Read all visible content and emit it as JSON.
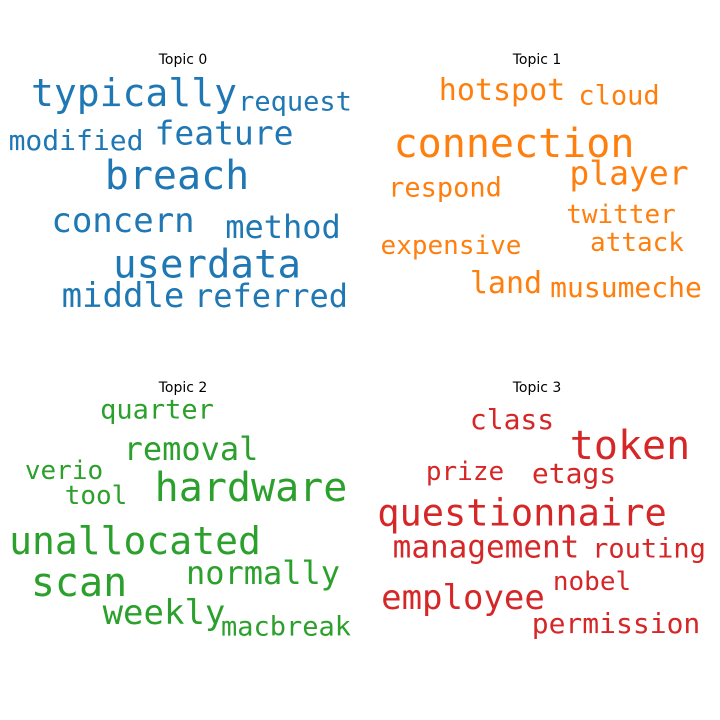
{
  "chart_data": [
    {
      "type": "wordcloud",
      "title": "Topic 0",
      "color": "#1f77b4",
      "words": [
        {
          "text": "breach",
          "weight": 1.0
        },
        {
          "text": "userdata",
          "weight": 0.98
        },
        {
          "text": "typically",
          "weight": 0.96
        },
        {
          "text": "middle",
          "weight": 0.86
        },
        {
          "text": "concern",
          "weight": 0.84
        },
        {
          "text": "feature",
          "weight": 0.82
        },
        {
          "text": "referred",
          "weight": 0.8
        },
        {
          "text": "method",
          "weight": 0.8
        },
        {
          "text": "modified",
          "weight": 0.7
        },
        {
          "text": "request",
          "weight": 0.68
        }
      ]
    },
    {
      "type": "wordcloud",
      "title": "Topic 1",
      "color": "#ff7f0e",
      "words": [
        {
          "text": "connection",
          "weight": 1.0
        },
        {
          "text": "player",
          "weight": 0.82
        },
        {
          "text": "hotspot",
          "weight": 0.76
        },
        {
          "text": "land",
          "weight": 0.76
        },
        {
          "text": "musumeche",
          "weight": 0.7
        },
        {
          "text": "respond",
          "weight": 0.68
        },
        {
          "text": "cloud",
          "weight": 0.68
        },
        {
          "text": "expensive",
          "weight": 0.66
        },
        {
          "text": "attack",
          "weight": 0.66
        },
        {
          "text": "twitter",
          "weight": 0.64
        }
      ]
    },
    {
      "type": "wordcloud",
      "title": "Topic 2",
      "color": "#2ca02c",
      "words": [
        {
          "text": "hardware",
          "weight": 1.0
        },
        {
          "text": "scan",
          "weight": 1.0
        },
        {
          "text": "unallocated",
          "weight": 0.94
        },
        {
          "text": "weekly",
          "weight": 0.84
        },
        {
          "text": "removal",
          "weight": 0.8
        },
        {
          "text": "normally",
          "weight": 0.8
        },
        {
          "text": "quarter",
          "weight": 0.68
        },
        {
          "text": "macbreak",
          "weight": 0.68
        },
        {
          "text": "verio",
          "weight": 0.66
        },
        {
          "text": "tool",
          "weight": 0.66
        }
      ]
    },
    {
      "type": "wordcloud",
      "title": "Topic 3",
      "color": "#d62728",
      "words": [
        {
          "text": "token",
          "weight": 1.0
        },
        {
          "text": "questionnaire",
          "weight": 0.92
        },
        {
          "text": "employee",
          "weight": 0.84
        },
        {
          "text": "management",
          "weight": 0.78
        },
        {
          "text": "etags",
          "weight": 0.7
        },
        {
          "text": "class",
          "weight": 0.7
        },
        {
          "text": "permission",
          "weight": 0.7
        },
        {
          "text": "routing",
          "weight": 0.68
        },
        {
          "text": "prize",
          "weight": 0.66
        },
        {
          "text": "nobel",
          "weight": 0.66
        }
      ]
    }
  ]
}
